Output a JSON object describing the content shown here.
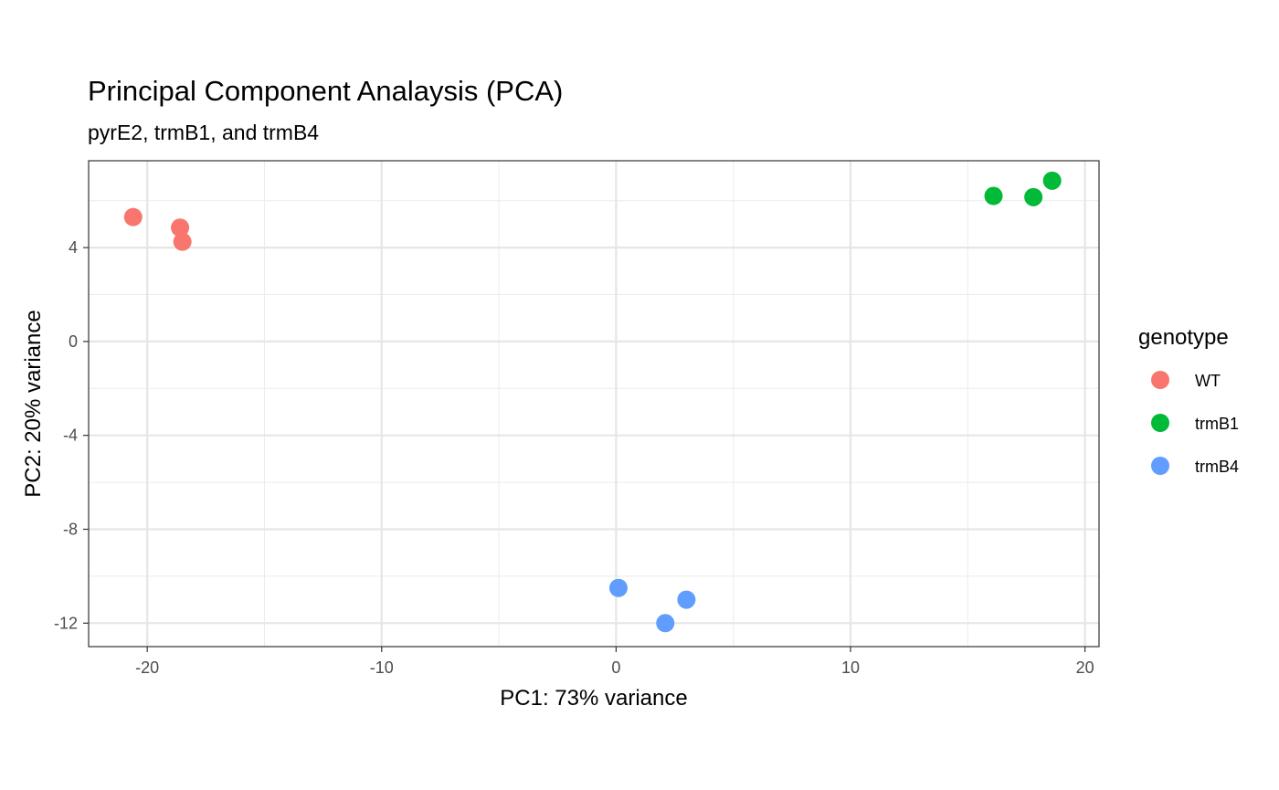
{
  "chart_data": {
    "type": "scatter",
    "title": "Principal Component Analaysis (PCA)",
    "subtitle": "pyrE2, trmB1, and trmB4",
    "xlabel": "PC1: 73% variance",
    "ylabel": "PC2: 20% variance",
    "xlim": [
      -22.5,
      20.6
    ],
    "ylim": [
      -13.0,
      7.7
    ],
    "xticks": [
      -20,
      -10,
      0,
      10,
      20
    ],
    "yticks": [
      -12,
      -8,
      -4,
      0,
      4
    ],
    "x_tick_labels": [
      "-20",
      "-10",
      "0",
      "10",
      "20"
    ],
    "y_tick_labels": [
      "-12",
      "-8",
      "-4",
      "0",
      "4"
    ],
    "grid": true,
    "legend": {
      "title": "genotype",
      "position": "right"
    },
    "series": [
      {
        "name": "WT",
        "color": "#F8766D",
        "x": [
          -20.6,
          -18.6,
          -18.5
        ],
        "y": [
          5.3,
          4.85,
          4.25
        ]
      },
      {
        "name": "trmB1",
        "color": "#00BA38",
        "x": [
          16.1,
          17.8,
          18.6
        ],
        "y": [
          6.2,
          6.15,
          6.85
        ]
      },
      {
        "name": "trmB4",
        "color": "#619CFF",
        "x": [
          0.1,
          3.0,
          2.1
        ],
        "y": [
          -10.5,
          -11.0,
          -12.0
        ]
      }
    ]
  }
}
